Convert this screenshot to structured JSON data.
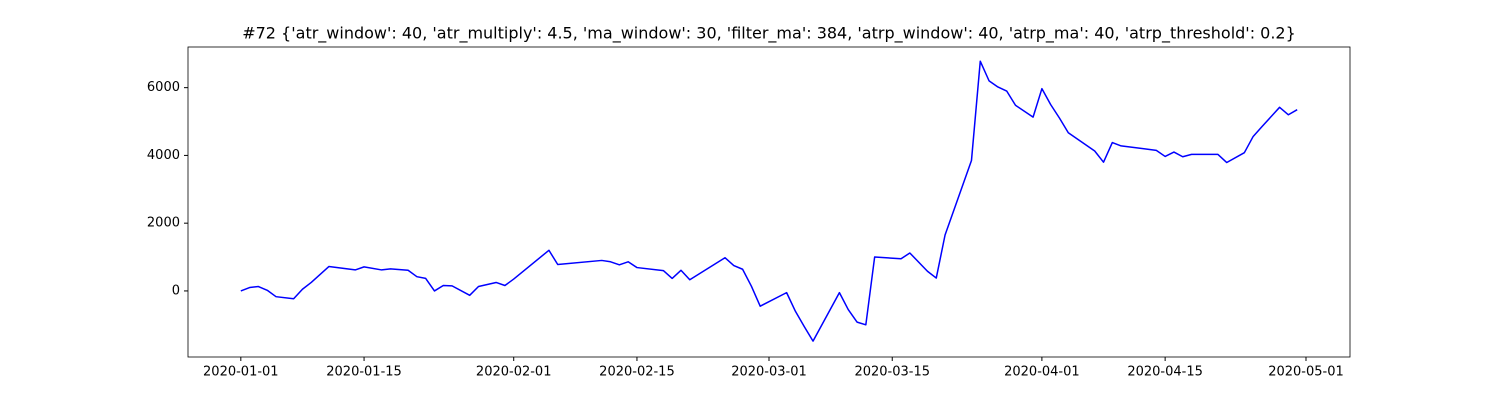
{
  "chart_data": {
    "type": "line",
    "title": "#72 {'atr_window': 40, 'atr_multiply': 4.5, 'ma_window': 30, 'filter_ma': 384, 'atrp_window': 40, 'atrp_ma': 40, 'atrp_threshold': 0.2}",
    "x": [
      "2020-01-01",
      "2020-01-02",
      "2020-01-03",
      "2020-01-04",
      "2020-01-05",
      "2020-01-07",
      "2020-01-08",
      "2020-01-09",
      "2020-01-11",
      "2020-01-14",
      "2020-01-15",
      "2020-01-17",
      "2020-01-18",
      "2020-01-20",
      "2020-01-21",
      "2020-01-22",
      "2020-01-23",
      "2020-01-24",
      "2020-01-25",
      "2020-01-27",
      "2020-01-28",
      "2020-01-30",
      "2020-01-31",
      "2020-02-01",
      "2020-02-05",
      "2020-02-06",
      "2020-02-11",
      "2020-02-12",
      "2020-02-13",
      "2020-02-14",
      "2020-02-15",
      "2020-02-18",
      "2020-02-19",
      "2020-02-20",
      "2020-02-21",
      "2020-02-25",
      "2020-02-26",
      "2020-02-27",
      "2020-02-28",
      "2020-02-29",
      "2020-03-03",
      "2020-03-04",
      "2020-03-05",
      "2020-03-06",
      "2020-03-09",
      "2020-03-10",
      "2020-03-11",
      "2020-03-12",
      "2020-03-13",
      "2020-03-16",
      "2020-03-17",
      "2020-03-19",
      "2020-03-20",
      "2020-03-21",
      "2020-03-24",
      "2020-03-25",
      "2020-03-26",
      "2020-03-27",
      "2020-03-28",
      "2020-03-29",
      "2020-03-31",
      "2020-04-01",
      "2020-04-02",
      "2020-04-03",
      "2020-04-04",
      "2020-04-07",
      "2020-04-08",
      "2020-04-09",
      "2020-04-10",
      "2020-04-14",
      "2020-04-15",
      "2020-04-16",
      "2020-04-17",
      "2020-04-18",
      "2020-04-21",
      "2020-04-22",
      "2020-04-24",
      "2020-04-25",
      "2020-04-26",
      "2020-04-28",
      "2020-04-29",
      "2020-04-30"
    ],
    "series": [
      {
        "color": "#0000ff",
        "values": [
          0,
          100,
          130,
          20,
          -170,
          -230,
          50,
          250,
          720,
          620,
          710,
          620,
          650,
          610,
          420,
          370,
          0,
          160,
          150,
          -130,
          130,
          250,
          160,
          350,
          1200,
          780,
          900,
          860,
          770,
          860,
          690,
          600,
          370,
          610,
          330,
          980,
          750,
          640,
          140,
          -450,
          -50,
          -600,
          -1050,
          -1480,
          -50,
          -550,
          -920,
          -1000,
          1000,
          950,
          1120,
          580,
          380,
          1650,
          3850,
          6780,
          6200,
          6020,
          5900,
          5480,
          5130,
          5970,
          5500,
          5100,
          4670,
          4130,
          3800,
          4380,
          4280,
          4150,
          3970,
          4100,
          3960,
          4030,
          4030,
          3790,
          4080,
          4560,
          4850,
          5420,
          5200,
          5350
        ]
      }
    ],
    "xlim": [
      "2019-12-26",
      "2020-05-06"
    ],
    "xticks": [
      "2020-01-01",
      "2020-01-15",
      "2020-02-01",
      "2020-02-15",
      "2020-03-01",
      "2020-03-15",
      "2020-04-01",
      "2020-04-15",
      "2020-05-01"
    ],
    "ylim": [
      -1950,
      7200
    ],
    "yticks": [
      0,
      2000,
      4000,
      6000
    ]
  }
}
